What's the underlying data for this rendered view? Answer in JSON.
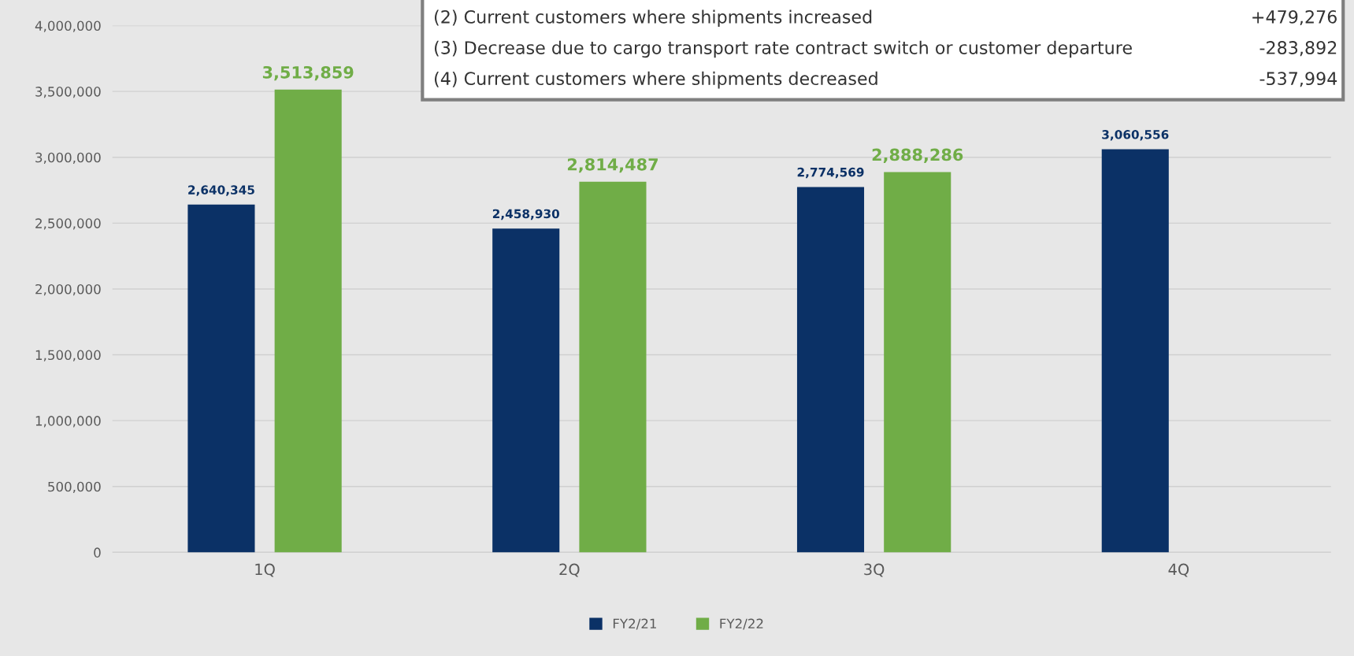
{
  "chart_data": {
    "type": "bar",
    "categories": [
      "1Q",
      "2Q",
      "3Q",
      "4Q"
    ],
    "series": [
      {
        "name": "FY2/21",
        "color": "#0b3166",
        "values": [
          2640345,
          2458930,
          2774569,
          3060556
        ],
        "value_labels": [
          "2,640,345",
          "2,458,930",
          "2,774,569",
          "3,060,556"
        ]
      },
      {
        "name": "FY2/22",
        "color": "#70ad47",
        "values": [
          3513859,
          2814487,
          2888286,
          null
        ],
        "value_labels": [
          "3,513,859",
          "2,814,487",
          "2,888,286",
          null
        ]
      }
    ],
    "ylim": [
      0,
      4000000
    ],
    "yticks": [
      {
        "value": 0,
        "label": "0"
      },
      {
        "value": 500000,
        "label": "500,000"
      },
      {
        "value": 1000000,
        "label": "1,000,000"
      },
      {
        "value": 1500000,
        "label": "1,500,000"
      },
      {
        "value": 2000000,
        "label": "2,000,000"
      },
      {
        "value": 2500000,
        "label": "2,500,000"
      },
      {
        "value": 3000000,
        "label": "3,000,000"
      },
      {
        "value": 3500000,
        "label": "3,500,000"
      },
      {
        "value": 4000000,
        "label": "4,000,000"
      }
    ],
    "grid": "y",
    "legend": "bottom",
    "annotations": [
      "(2) Current customers where shipments increased",
      "+479,276",
      "(3) Decrease due to cargo transport rate contract switch or customer departure",
      "-283,892",
      "(4) Current customers where shipments decreased",
      "-537,994"
    ]
  }
}
